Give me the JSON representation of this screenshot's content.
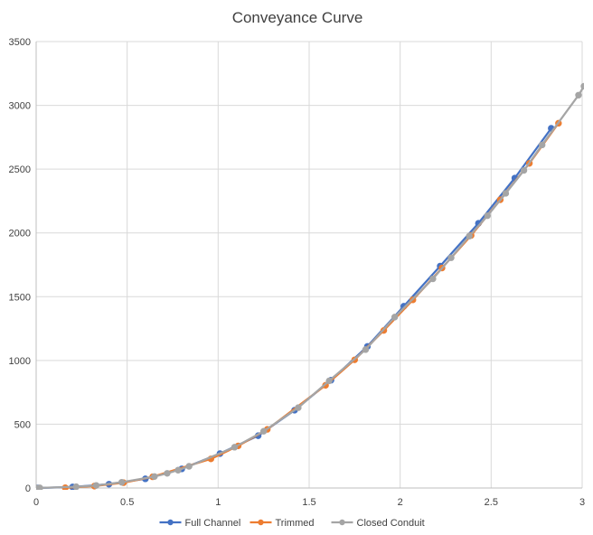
{
  "chart_data": {
    "type": "scatter",
    "title": "Conveyance Curve",
    "xlabel": "",
    "ylabel": "",
    "xlim": [
      0,
      3
    ],
    "ylim": [
      0,
      3500
    ],
    "xticks": [
      0,
      0.5,
      1,
      1.5,
      2,
      2.5,
      3
    ],
    "xtick_labels": [
      "0",
      "0.5",
      "1",
      "1.5",
      "2",
      "2.5",
      "3"
    ],
    "yticks": [
      0,
      500,
      1000,
      1500,
      2000,
      2500,
      3000,
      3500
    ],
    "ytick_labels": [
      "0",
      "500",
      "1000",
      "1500",
      "2000",
      "2500",
      "3000",
      "3500"
    ],
    "grid": true,
    "legend_position": "bottom",
    "series": [
      {
        "name": "Full Channel",
        "color": "#4472c4",
        "x": [
          0,
          0.01,
          0.2,
          0.4,
          0.6,
          0.8,
          1.01,
          1.22,
          1.42,
          1.62,
          1.82,
          2.02,
          2.22,
          2.43,
          2.63,
          2.83
        ],
        "y": [
          0,
          0,
          8,
          30,
          72,
          150,
          270,
          410,
          610,
          845,
          1110,
          1425,
          1740,
          2075,
          2430,
          2820
        ]
      },
      {
        "name": "Trimmed",
        "color": "#ed7d31",
        "x": [
          0.16,
          0.32,
          0.48,
          0.64,
          0.96,
          1.11,
          1.27,
          1.59,
          1.75,
          1.91,
          2.07,
          2.23,
          2.39,
          2.55,
          2.71,
          2.87
        ],
        "y": [
          2,
          15,
          42,
          88,
          228,
          330,
          460,
          805,
          1005,
          1235,
          1475,
          1725,
          1980,
          2260,
          2545,
          2860
        ]
      },
      {
        "name": "Closed Conduit",
        "color": "#a5a5a5",
        "x": [
          0,
          0.02,
          0.22,
          0.33,
          0.47,
          0.65,
          0.72,
          0.78,
          0.84,
          1.09,
          1.25,
          1.44,
          1.61,
          1.81,
          1.97,
          2.18,
          2.28,
          2.38,
          2.48,
          2.58,
          2.68,
          2.78,
          2.98,
          3.01
        ],
        "y": [
          0,
          1,
          10,
          20,
          45,
          90,
          115,
          140,
          170,
          320,
          445,
          630,
          840,
          1085,
          1340,
          1640,
          1805,
          1975,
          2135,
          2310,
          2490,
          2690,
          3080,
          3150
        ]
      }
    ]
  }
}
